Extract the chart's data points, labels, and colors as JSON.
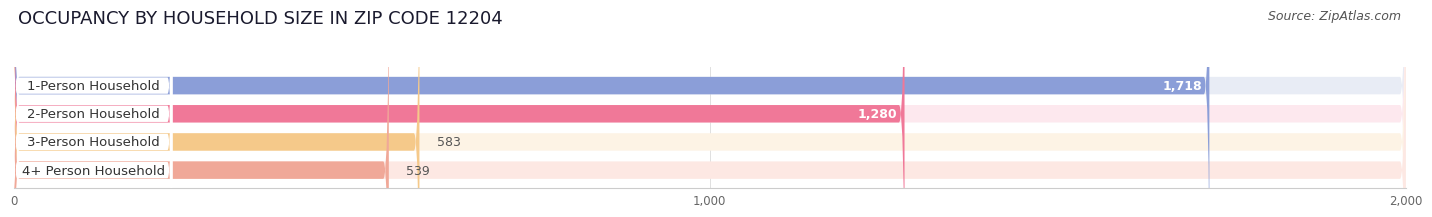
{
  "title": "OCCUPANCY BY HOUSEHOLD SIZE IN ZIP CODE 12204",
  "source": "Source: ZipAtlas.com",
  "categories": [
    "1-Person Household",
    "2-Person Household",
    "3-Person Household",
    "4+ Person Household"
  ],
  "values": [
    1718,
    1280,
    583,
    539
  ],
  "bar_colors": [
    "#8B9ED8",
    "#F07898",
    "#F5C98A",
    "#F0A898"
  ],
  "bar_bg_colors": [
    "#E8ECF5",
    "#FDE8EE",
    "#FDF3E5",
    "#FDE8E3"
  ],
  "value_labels": [
    "1,718",
    "1,280",
    "583",
    "539"
  ],
  "xlim": [
    0,
    2000
  ],
  "xticks": [
    0,
    1000,
    2000
  ],
  "xtick_labels": [
    "0",
    "1,000",
    "2,000"
  ],
  "background_color": "#ffffff",
  "title_fontsize": 13,
  "source_fontsize": 9,
  "bar_label_fontsize": 9.5,
  "value_fontsize": 9
}
